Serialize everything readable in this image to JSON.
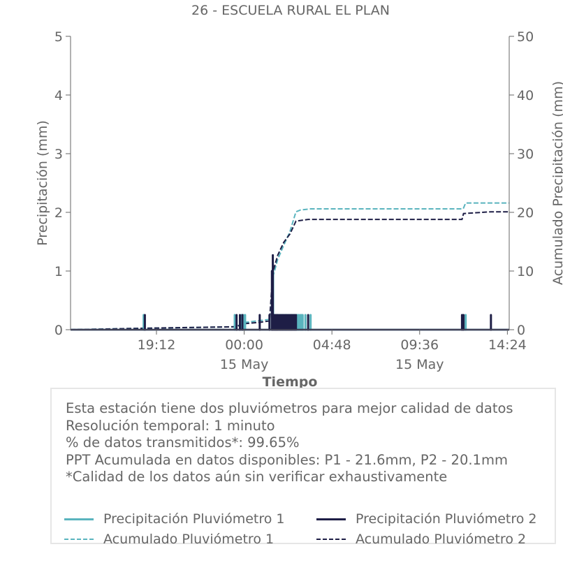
{
  "chart_data": {
    "type": "line",
    "title": "26 - ESCUELA RURAL EL PLAN",
    "xlabel": "Tiempo",
    "ylabel": "Precipitación (mm)",
    "y2label": "Acumulado Precipitación (mm)",
    "ylim": [
      0,
      5
    ],
    "y2lim": [
      0,
      50
    ],
    "yticks": [
      "0",
      "1",
      "2",
      "3",
      "4",
      "5"
    ],
    "y2ticks": [
      "0",
      "10",
      "20",
      "30",
      "40",
      "50"
    ],
    "xlim": [
      "14 May 14:30",
      "15 May 14:30"
    ],
    "xticks": [
      {
        "x": "14 May 19:12",
        "label": "19:12",
        "sub": ""
      },
      {
        "x": "15 May 00:00",
        "label": "00:00",
        "sub": "15 May"
      },
      {
        "x": "15 May 04:48",
        "label": "04:48",
        "sub": ""
      },
      {
        "x": "15 May 09:36",
        "label": "09:36",
        "sub": "15 May"
      },
      {
        "x": "15 May 14:24",
        "label": "14:24",
        "sub": ""
      }
    ],
    "grid": false,
    "series": [
      {
        "name": "Precipitación Pluviómetro 1",
        "axis": "left",
        "style": "solid",
        "color": "#5ab4be",
        "x": [
          "14 May 18:30",
          "14 May 23:29",
          "14 May 23:52",
          "14 May 23:57",
          "15 May 00:03",
          "15 May 01:31",
          "15 May 01:35",
          "15 May 01:39",
          "15 May 01:43",
          "15 May 01:47",
          "15 May 01:51",
          "15 May 01:55",
          "15 May 02:00",
          "15 May 02:04",
          "15 May 02:08",
          "15 May 02:13",
          "15 May 02:17",
          "15 May 02:21",
          "15 May 02:25",
          "15 May 02:30",
          "15 May 02:34",
          "15 May 02:38",
          "15 May 02:42",
          "15 May 02:47",
          "15 May 02:51",
          "15 May 02:55",
          "15 May 02:59",
          "15 May 03:04",
          "15 May 03:08",
          "15 May 03:12",
          "15 May 03:21",
          "15 May 03:38",
          "15 May 11:59",
          "15 May 12:07"
        ],
        "values": [
          0.25,
          0.25,
          0.25,
          0.25,
          0.25,
          0.5,
          1.0,
          0.25,
          0.25,
          0.25,
          0.25,
          0.25,
          0.25,
          0.25,
          0.25,
          0.25,
          0.25,
          0.25,
          0.25,
          0.25,
          0.25,
          0.25,
          0.25,
          0.25,
          0.25,
          0.25,
          0.25,
          0.25,
          0.25,
          0.25,
          0.25,
          0.25,
          0.25,
          0.25
        ]
      },
      {
        "name": "Precipitación Pluviómetro 2",
        "axis": "left",
        "style": "solid",
        "color": "#1e1e46",
        "x": [
          "14 May 18:34",
          "14 May 23:35",
          "14 May 23:46",
          "14 May 23:54",
          "15 May 00:51",
          "15 May 01:23",
          "15 May 01:31",
          "15 May 01:34",
          "15 May 01:38",
          "15 May 01:42",
          "15 May 01:46",
          "15 May 01:50",
          "15 May 01:55",
          "15 May 02:00",
          "15 May 02:05",
          "15 May 02:10",
          "15 May 02:15",
          "15 May 02:20",
          "15 May 02:25",
          "15 May 02:30",
          "15 May 02:35",
          "15 May 02:40",
          "15 May 02:45",
          "15 May 02:50",
          "15 May 03:30",
          "15 May 11:55",
          "15 May 12:00",
          "15 May 13:30"
        ],
        "values": [
          0.25,
          0.25,
          0.25,
          0.25,
          0.25,
          0.25,
          1.0,
          1.27,
          0.25,
          0.25,
          0.25,
          0.25,
          0.25,
          0.25,
          0.25,
          0.25,
          0.25,
          0.25,
          0.25,
          0.25,
          0.25,
          0.25,
          0.25,
          0.25,
          0.25,
          0.25,
          0.25,
          0.25
        ]
      },
      {
        "name": "Acumulado Pluviómetro 1",
        "axis": "right",
        "style": "dashed",
        "color": "#5ab4be",
        "x": [
          "14 May 14:30",
          "14 May 18:30",
          "14 May 23:29",
          "14 May 23:57",
          "15 May 00:03",
          "15 May 01:31",
          "15 May 01:36",
          "15 May 01:50",
          "15 May 02:10",
          "15 May 02:30",
          "15 May 02:50",
          "15 May 03:05",
          "15 May 03:38",
          "15 May 11:59",
          "15 May 12:07",
          "15 May 14:30"
        ],
        "values": [
          0,
          0.25,
          0.5,
          1.0,
          1.25,
          1.8,
          9.3,
          12.0,
          14.4,
          16.7,
          20.1,
          20.4,
          20.6,
          20.6,
          21.6,
          21.6
        ]
      },
      {
        "name": "Acumulado Pluviómetro 2",
        "axis": "right",
        "style": "dashed",
        "color": "#1e1e46",
        "x": [
          "14 May 14:30",
          "14 May 18:34",
          "14 May 23:35",
          "14 May 23:54",
          "15 May 00:51",
          "15 May 01:23",
          "15 May 01:34",
          "15 May 01:50",
          "15 May 02:10",
          "15 May 02:30",
          "15 May 02:50",
          "15 May 03:30",
          "15 May 11:55",
          "15 May 12:00",
          "15 May 13:30",
          "15 May 14:30"
        ],
        "values": [
          0,
          0.25,
          0.5,
          1.0,
          1.25,
          1.5,
          9.8,
          12.7,
          14.9,
          16.3,
          18.5,
          18.8,
          18.8,
          19.8,
          20.1,
          20.1
        ]
      }
    ]
  },
  "info": {
    "lines": [
      "Esta estación tiene dos pluviómetros para mejor calidad de datos",
      "Resolución temporal: 1 minuto",
      "% de datos transmitidos*: 99.65%",
      "PPT Acumulada en datos disponibles: P1 - 21.6mm, P2 - 20.1mm",
      "*Calidad de los datos aún sin verificar exhaustivamente"
    ]
  },
  "legend": {
    "p1": "Precipitación Pluviómetro 1",
    "p2": "Precipitación Pluviómetro 2",
    "a1": "Acumulado Pluviómetro 1",
    "a2": "Acumulado Pluviómetro 2"
  }
}
